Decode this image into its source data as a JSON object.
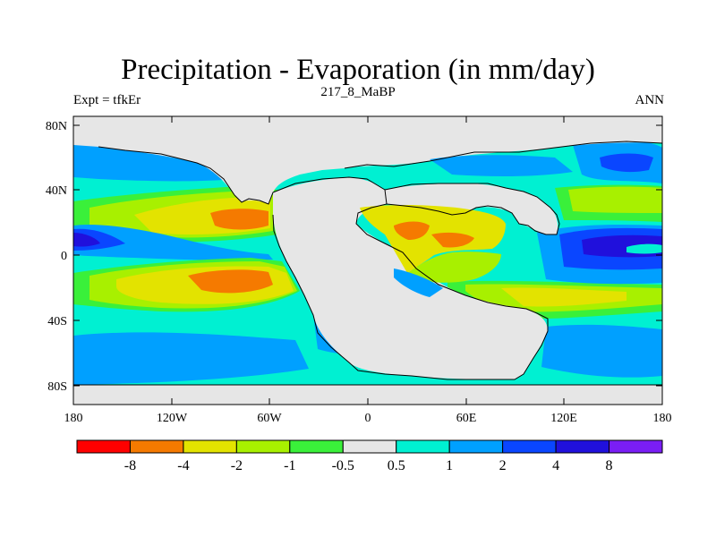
{
  "header": {
    "title": "Precipitation - Evaporation (in mm/day)",
    "subtitle": "217_8_MaBP",
    "left_note": "Expt = tfkEr",
    "right_note": "ANN"
  },
  "axes": {
    "lat_ticks": [
      "80N",
      "40N",
      "0",
      "40S",
      "80S"
    ],
    "lon_ticks": [
      "180",
      "120W",
      "60W",
      "0",
      "60E",
      "120E",
      "180"
    ]
  },
  "colorbar": {
    "labels": [
      "-8",
      "-4",
      "-2",
      "-1",
      "-0.5",
      "0.5",
      "1",
      "2",
      "4",
      "8"
    ],
    "colors": [
      "#ff0000",
      "#f57a00",
      "#e3e300",
      "#a8f000",
      "#3af03a",
      "#e6e6e6",
      "#00f0d2",
      "#00a0ff",
      "#0a46ff",
      "#2010dc",
      "#7a1ef5"
    ]
  },
  "map": {
    "land_color": "#e6e6e6",
    "ocean_base_color": "#00f0d2"
  }
}
